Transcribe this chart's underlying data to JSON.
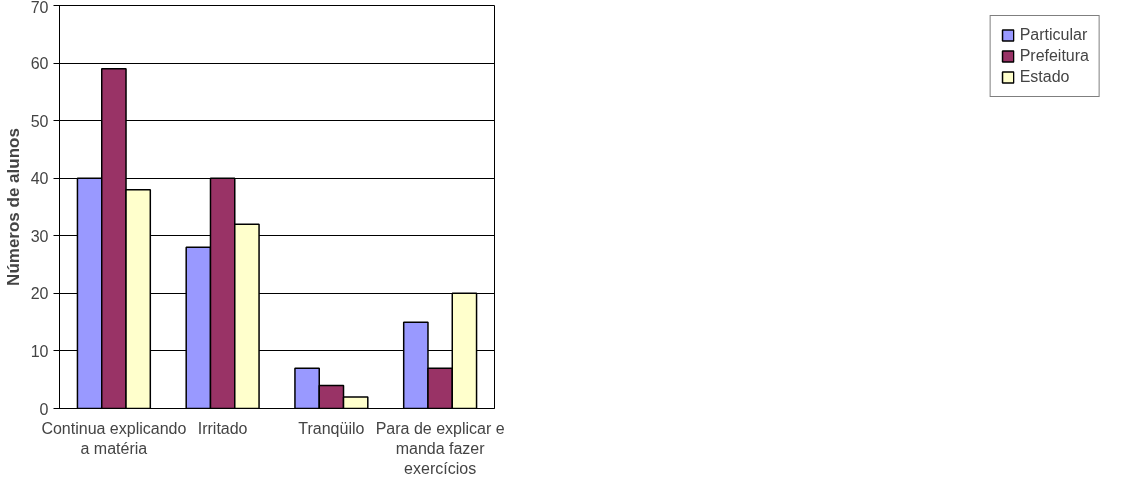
{
  "chart_data": {
    "type": "bar",
    "ylabel": "Números de alunos",
    "categories": [
      "Continua explicando a matéria",
      "Irritado",
      "Tranqüilo",
      "Para de explicar e manda fazer exercícios"
    ],
    "series": [
      {
        "name": "Particular",
        "color": "#9999ff",
        "values": [
          40,
          28,
          7,
          15
        ]
      },
      {
        "name": "Prefeitura",
        "color": "#993366",
        "values": [
          59,
          40,
          4,
          7
        ]
      },
      {
        "name": "Estado",
        "color": "#ffffcc",
        "values": [
          38,
          32,
          2,
          20
        ]
      }
    ],
    "ylim": [
      0,
      70
    ],
    "yticks": [
      0,
      10,
      20,
      30,
      40,
      50,
      60,
      70
    ],
    "grid": "y",
    "legend": "right"
  }
}
